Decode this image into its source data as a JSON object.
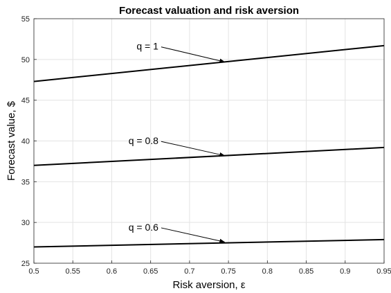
{
  "chart_data": {
    "type": "line",
    "title": "Forecast valuation and risk aversion",
    "xlabel": "Risk aversion, ε",
    "ylabel": "Forecast value, $",
    "xlim": [
      0.5,
      0.95
    ],
    "ylim": [
      25,
      55
    ],
    "xticks": [
      0.5,
      0.55,
      0.6,
      0.65,
      0.7,
      0.75,
      0.8,
      0.85,
      0.9,
      0.95
    ],
    "xtick_labels": [
      "0.5",
      "0.55",
      "0.6",
      "0.65",
      "0.7",
      "0.75",
      "0.8",
      "0.85",
      "0.9",
      "0.95"
    ],
    "yticks": [
      25,
      30,
      35,
      40,
      45,
      50,
      55
    ],
    "ytick_labels": [
      "25",
      "30",
      "35",
      "40",
      "45",
      "50",
      "55"
    ],
    "grid": true,
    "series": [
      {
        "x": [
          0.5,
          0.95
        ],
        "y": [
          47.3,
          51.7
        ],
        "color": "#000000"
      },
      {
        "x": [
          0.5,
          0.95
        ],
        "y": [
          37.0,
          39.2
        ],
        "color": "#000000"
      },
      {
        "x": [
          0.5,
          0.95
        ],
        "y": [
          27.0,
          27.9
        ],
        "color": "#000000"
      }
    ],
    "annotations": [
      {
        "text": "q = 1",
        "text_x": 0.66,
        "text_y": 51.2,
        "arrow_to_x": 0.745,
        "arrow_to_y": 49.7
      },
      {
        "text": "q = 0.8",
        "text_x": 0.66,
        "text_y": 39.6,
        "arrow_to_x": 0.745,
        "arrow_to_y": 38.2
      },
      {
        "text": "q = 0.6",
        "text_x": 0.66,
        "text_y": 29.0,
        "arrow_to_x": 0.745,
        "arrow_to_y": 27.6
      }
    ]
  }
}
